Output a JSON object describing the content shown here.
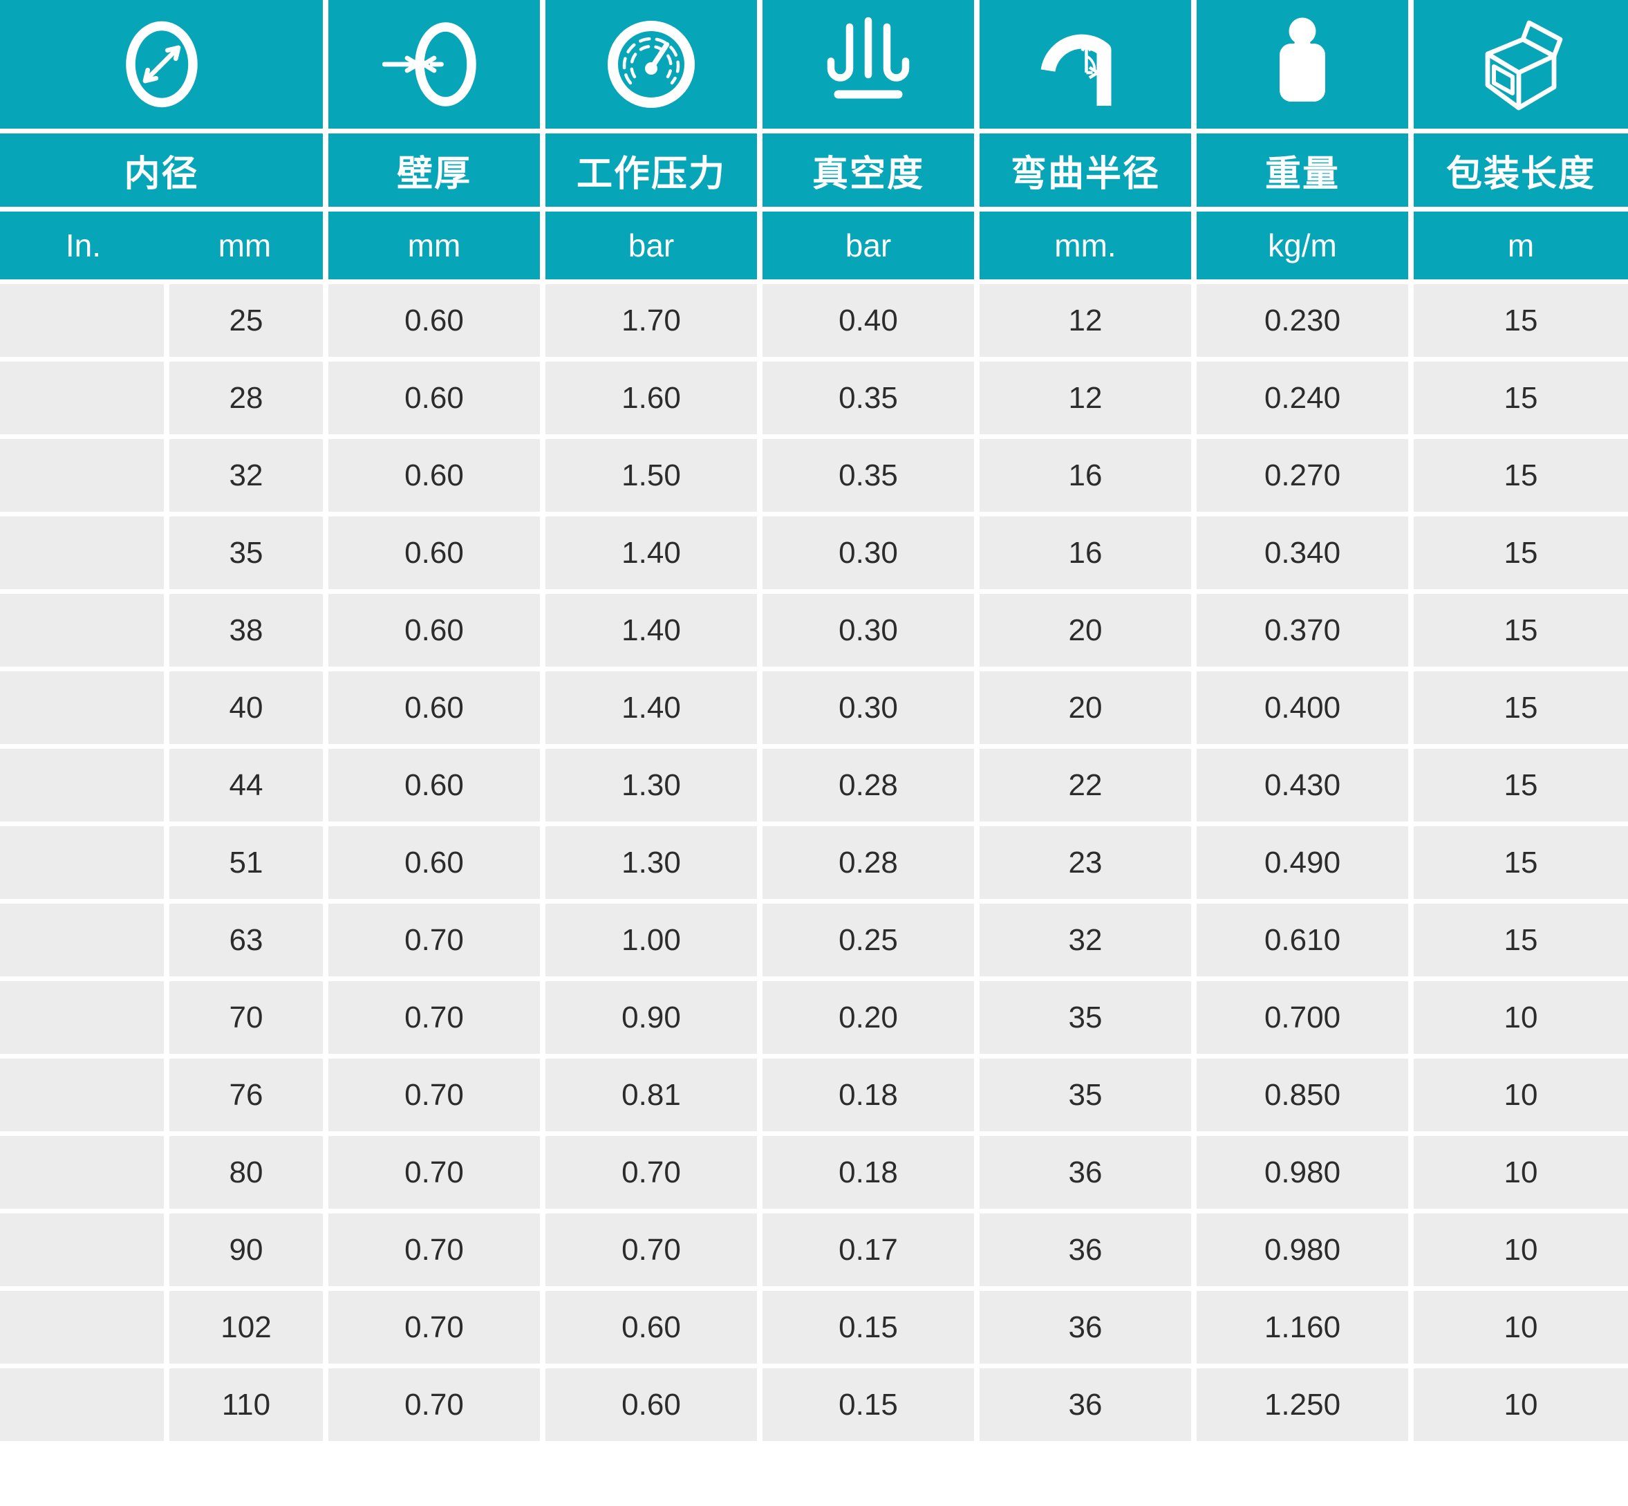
{
  "colors": {
    "teal": "#06a5b7",
    "row_bg": "#ececec",
    "gap": "#ffffff",
    "data_text": "#2c2c2c"
  },
  "header": {
    "columns": [
      {
        "name": "inner-diameter",
        "icon": "diameter-icon",
        "label": "内径",
        "units": [
          "In.",
          "mm"
        ]
      },
      {
        "name": "wall-thickness",
        "icon": "wall-thickness-icon",
        "label": "壁厚",
        "unit": "mm"
      },
      {
        "name": "working-pressure",
        "icon": "pressure-gauge-icon",
        "label": "工作压力",
        "unit": "bar"
      },
      {
        "name": "vacuum",
        "icon": "vacuum-icon",
        "label": "真空度",
        "unit": "bar"
      },
      {
        "name": "bend-radius",
        "icon": "bend-radius-icon",
        "label": "弯曲半径",
        "unit": "mm."
      },
      {
        "name": "weight",
        "icon": "weight-icon",
        "label": "重量",
        "unit": "kg/m"
      },
      {
        "name": "packing-length",
        "icon": "package-icon",
        "label": "包装长度",
        "unit": "m"
      }
    ]
  },
  "table": {
    "rows": [
      [
        "",
        "25",
        "0.60",
        "1.70",
        "0.40",
        "12",
        "0.230",
        "15"
      ],
      [
        "",
        "28",
        "0.60",
        "1.60",
        "0.35",
        "12",
        "0.240",
        "15"
      ],
      [
        "",
        "32",
        "0.60",
        "1.50",
        "0.35",
        "16",
        "0.270",
        "15"
      ],
      [
        "",
        "35",
        "0.60",
        "1.40",
        "0.30",
        "16",
        "0.340",
        "15"
      ],
      [
        "",
        "38",
        "0.60",
        "1.40",
        "0.30",
        "20",
        "0.370",
        "15"
      ],
      [
        "",
        "40",
        "0.60",
        "1.40",
        "0.30",
        "20",
        "0.400",
        "15"
      ],
      [
        "",
        "44",
        "0.60",
        "1.30",
        "0.28",
        "22",
        "0.430",
        "15"
      ],
      [
        "",
        "51",
        "0.60",
        "1.30",
        "0.28",
        "23",
        "0.490",
        "15"
      ],
      [
        "",
        "63",
        "0.70",
        "1.00",
        "0.25",
        "32",
        "0.610",
        "15"
      ],
      [
        "",
        "70",
        "0.70",
        "0.90",
        "0.20",
        "35",
        "0.700",
        "10"
      ],
      [
        "",
        "76",
        "0.70",
        "0.81",
        "0.18",
        "35",
        "0.850",
        "10"
      ],
      [
        "",
        "80",
        "0.70",
        "0.70",
        "0.18",
        "36",
        "0.980",
        "10"
      ],
      [
        "",
        "90",
        "0.70",
        "0.70",
        "0.17",
        "36",
        "0.980",
        "10"
      ],
      [
        "",
        "102",
        "0.70",
        "0.60",
        "0.15",
        "36",
        "1.160",
        "10"
      ],
      [
        "",
        "110",
        "0.70",
        "0.60",
        "0.15",
        "36",
        "1.250",
        "10"
      ]
    ]
  }
}
